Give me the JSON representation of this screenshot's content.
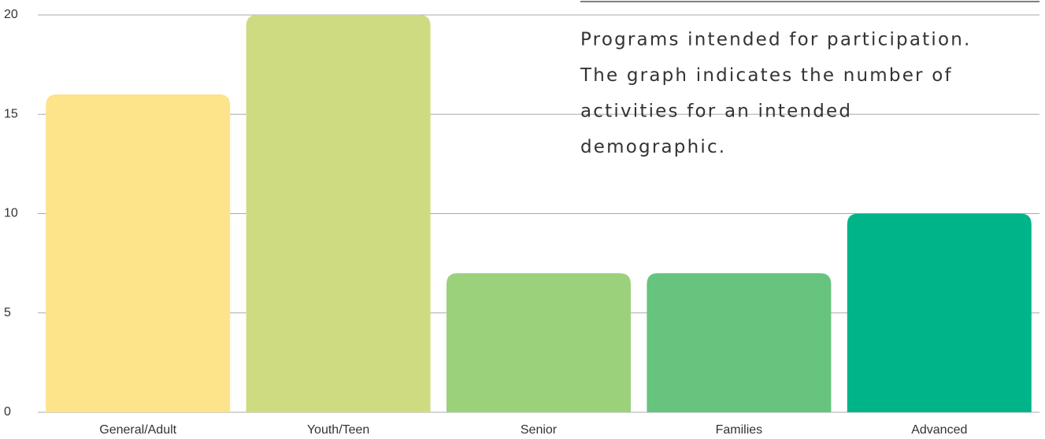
{
  "chart_data": {
    "type": "bar",
    "categories": [
      "General/Adult",
      "Youth/Teen",
      "Senior",
      "Families",
      "Advanced"
    ],
    "values": [
      16,
      20,
      7,
      7,
      10
    ],
    "colors": [
      "#fde38a",
      "#cfdb80",
      "#9bd17b",
      "#66c47f",
      "#00b48a"
    ],
    "ylim": [
      0,
      20
    ],
    "yticks": [
      0,
      5,
      10,
      15,
      20
    ],
    "grid": true,
    "annotation": [
      "Programs intended for participation.",
      "The graph indicates the number of",
      "activities for an intended",
      "demographic."
    ]
  }
}
